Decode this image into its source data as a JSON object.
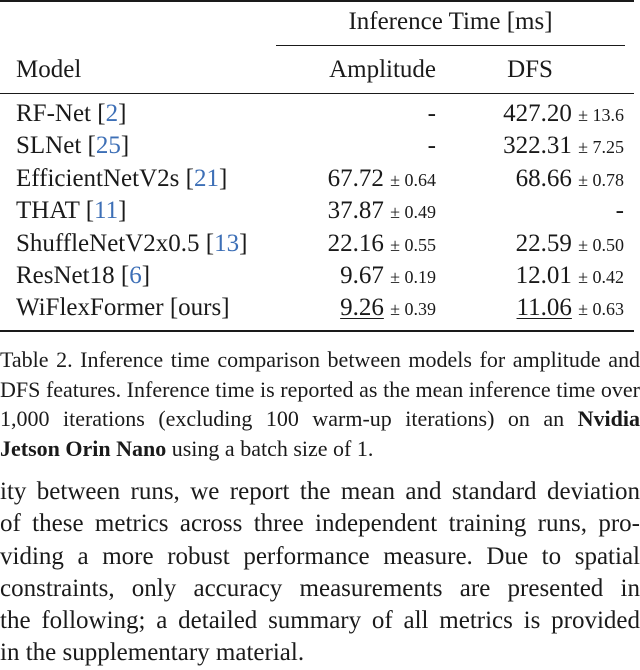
{
  "table": {
    "group_header": "Inference Time [ms]",
    "headers": {
      "model": "Model",
      "amplitude": "Amplitude",
      "dfs": "DFS"
    },
    "rows": [
      {
        "model": "RF-Net ",
        "cite": "[2]",
        "cite_open": "[",
        "cite_num": "2",
        "cite_close": "]",
        "amp_mean": "-",
        "amp_std": "",
        "dfs_mean": "427.20",
        "dfs_std": "± 13.6"
      },
      {
        "model": "SLNet ",
        "cite_open": "[",
        "cite_num": "25",
        "cite_close": "]",
        "amp_mean": "-",
        "amp_std": "",
        "dfs_mean": "322.31",
        "dfs_std": "± 7.25"
      },
      {
        "model": "EfficientNetV2s ",
        "cite_open": "[",
        "cite_num": "21",
        "cite_close": "]",
        "amp_mean": "67.72",
        "amp_std": "± 0.64",
        "dfs_mean": "68.66",
        "dfs_std": "± 0.78"
      },
      {
        "model": "THAT ",
        "cite_open": "[",
        "cite_num": "11",
        "cite_close": "]",
        "amp_mean": "37.87",
        "amp_std": "± 0.49",
        "dfs_mean": "-",
        "dfs_std": ""
      },
      {
        "model": "ShuffleNetV2x0.5 ",
        "cite_open": "[",
        "cite_num": "13",
        "cite_close": "]",
        "amp_mean": "22.16",
        "amp_std": "± 0.55",
        "dfs_mean": "22.59",
        "dfs_std": "± 0.50"
      },
      {
        "model": "ResNet18 ",
        "cite_open": "[",
        "cite_num": "6",
        "cite_close": "]",
        "amp_mean": "9.67",
        "amp_std": "± 0.19",
        "dfs_mean": "12.01",
        "dfs_std": "± 0.42"
      },
      {
        "model": "WiFlexFormer [ours]",
        "cite_open": "",
        "cite_num": "",
        "cite_close": "",
        "amp_mean": "9.26",
        "amp_std": "± 0.39",
        "dfs_mean": "11.06",
        "dfs_std": "± 0.63"
      }
    ]
  },
  "caption": {
    "text_before": "Table 2. Inference time comparison between models for amplitude and DFS features. Inference time is reported as the mean inference time over 1,000 iterations (excluding 100 warm-up iterations) on an ",
    "bold": "Nvidia Jetson Orin Nano",
    "text_after": " using a batch size of 1."
  },
  "body_text": {
    "lines": [
      "ity between runs, we report the mean and standard deviation",
      "of these metrics across three independent training runs, pro-",
      "viding a more robust performance measure. Due to spatial",
      "constraints, only accuracy measurements are presented in",
      "the following; a detailed summary of all metrics is provided",
      "in the supplementary material."
    ]
  },
  "colors": {
    "text": "#1a1a1a",
    "citation": "#3d6fb6",
    "background": "#ffffff"
  }
}
